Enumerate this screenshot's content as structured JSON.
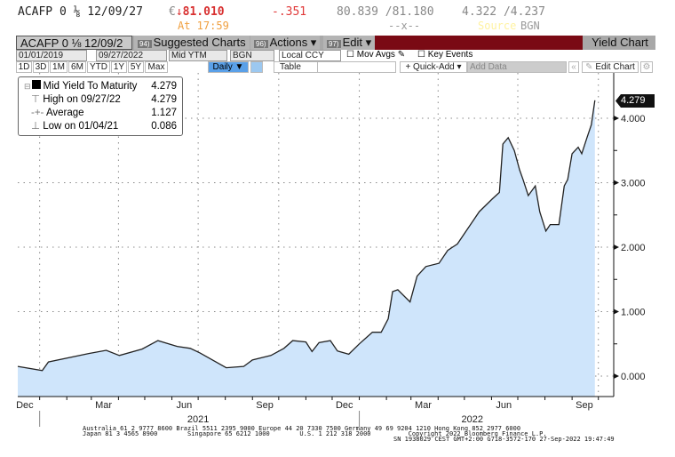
{
  "quote": {
    "ticker": "ACAFP 0",
    "coupon_sym": "⅛",
    "maturity": "12/09/27",
    "currency": "€",
    "direction": "↓",
    "price": "81.010",
    "change": "-.351",
    "bid_ask": "80.839 /81.180",
    "yield_bid_ask": "4.322 /4.237",
    "time": "At 17:59",
    "size": "--x--",
    "source_label": "Source",
    "source": "BGN"
  },
  "toolbar": {
    "security": "ACAFP 0 ⅛ 12/09/2",
    "suggested_num": "94)",
    "suggested": "Suggested Charts",
    "actions_num": "96)",
    "actions": "Actions ▾",
    "edit_num": "97)",
    "edit": "Edit ▾",
    "title": "Yield Chart",
    "accent": "#7a0a14"
  },
  "controls": {
    "start_date": "01/01/2019",
    "end_date": "09/27/2022",
    "field": "Mid YTM",
    "source": "BGN",
    "currency": "Local CCY",
    "mov_avgs": "Mov Avgs",
    "key_events": "Key Events",
    "periods": [
      "1D",
      "3D",
      "1M",
      "6M",
      "YTD",
      "1Y",
      "5Y",
      "Max"
    ],
    "frequency": "Daily ▼",
    "table": "Table",
    "quick_add": "+ Quick-Add ▾",
    "add_data": "Add Data",
    "edit_chart": "Edit Chart"
  },
  "legend": {
    "series": "Mid Yield To Maturity",
    "series_value": "4.279",
    "high_label": "High on 09/27/22",
    "high": "4.279",
    "avg_label": "Average",
    "avg": "1.127",
    "low_label": "Low on 01/04/21",
    "low": "0.086"
  },
  "chart_data": {
    "type": "area",
    "series": [
      {
        "name": "Mid Yield To Maturity",
        "color": "#222222",
        "fill": "#cfe5fb",
        "x": [
          "2020-12-07",
          "2021-01-04",
          "2021-01-11",
          "2021-02-26",
          "2021-03-18",
          "2021-04-02",
          "2021-04-28",
          "2021-05-16",
          "2021-06-07",
          "2021-06-22",
          "2021-07-03",
          "2021-08-02",
          "2021-08-22",
          "2021-09-01",
          "2021-09-22",
          "2021-10-07",
          "2021-10-17",
          "2021-11-01",
          "2021-11-08",
          "2021-11-16",
          "2021-11-29",
          "2021-12-07",
          "2021-12-20",
          "2022-01-01",
          "2022-01-16",
          "2022-01-26",
          "2022-02-03",
          "2022-02-08",
          "2022-02-14",
          "2022-02-28",
          "2022-03-08",
          "2022-03-18",
          "2022-04-02",
          "2022-04-12",
          "2022-04-23",
          "2022-05-03",
          "2022-05-18",
          "2022-06-02",
          "2022-06-10",
          "2022-06-14",
          "2022-06-20",
          "2022-06-27",
          "2022-07-03",
          "2022-07-07",
          "2022-07-13",
          "2022-07-21",
          "2022-07-26",
          "2022-08-02",
          "2022-08-07",
          "2022-08-17",
          "2022-08-23",
          "2022-08-27",
          "2022-09-01",
          "2022-09-08",
          "2022-09-12",
          "2022-09-18",
          "2022-09-23",
          "2022-09-27"
        ],
        "y": [
          0.15,
          0.086,
          0.22,
          0.35,
          0.4,
          0.32,
          0.42,
          0.55,
          0.46,
          0.43,
          0.36,
          0.13,
          0.15,
          0.25,
          0.32,
          0.43,
          0.55,
          0.53,
          0.38,
          0.52,
          0.55,
          0.39,
          0.34,
          0.5,
          0.68,
          0.68,
          0.89,
          1.31,
          1.34,
          1.15,
          1.55,
          1.7,
          1.75,
          1.95,
          2.05,
          2.25,
          2.55,
          2.75,
          2.85,
          3.6,
          3.7,
          3.5,
          3.2,
          3.05,
          2.8,
          2.95,
          2.55,
          2.25,
          2.35,
          2.35,
          2.95,
          3.05,
          3.45,
          3.55,
          3.45,
          3.7,
          3.9,
          4.279
        ]
      }
    ],
    "last_value": "4.279",
    "yticks": [
      "0.000",
      "1.000",
      "2.000",
      "3.000",
      "4.000"
    ],
    "ylim": [
      0,
      4.5
    ],
    "xticks": [
      {
        "label": "Dec",
        "date": "2020-12-15"
      },
      {
        "label": "Mar",
        "date": "2021-03-15"
      },
      {
        "label": "Jun",
        "date": "2021-06-15"
      },
      {
        "label": "Sep",
        "date": "2021-09-15"
      },
      {
        "label": "Dec",
        "date": "2021-12-15"
      },
      {
        "label": "Mar",
        "date": "2022-03-15"
      },
      {
        "label": "Jun",
        "date": "2022-06-15"
      },
      {
        "label": "Sep",
        "date": "2022-09-15"
      }
    ],
    "years": [
      "2021",
      "2022"
    ],
    "grid": true
  },
  "footer": {
    "line1": "Australia 61 2 9777 8600 Brazil 5511 2395 9000 Europe 44 20 7330 7500 Germany 49 69 9204 1210 Hong Kong 852 2977 6000",
    "line2": "Japan 81 3 4565 8900        Singapore 65 6212 1000        U.S. 1 212 318 2000          Copyright 2022 Bloomberg Finance L.P.",
    "line3": "SN 1938029 CEST GMT+2:00 G718-3572-170 27-Sep-2022 19:47:49"
  }
}
